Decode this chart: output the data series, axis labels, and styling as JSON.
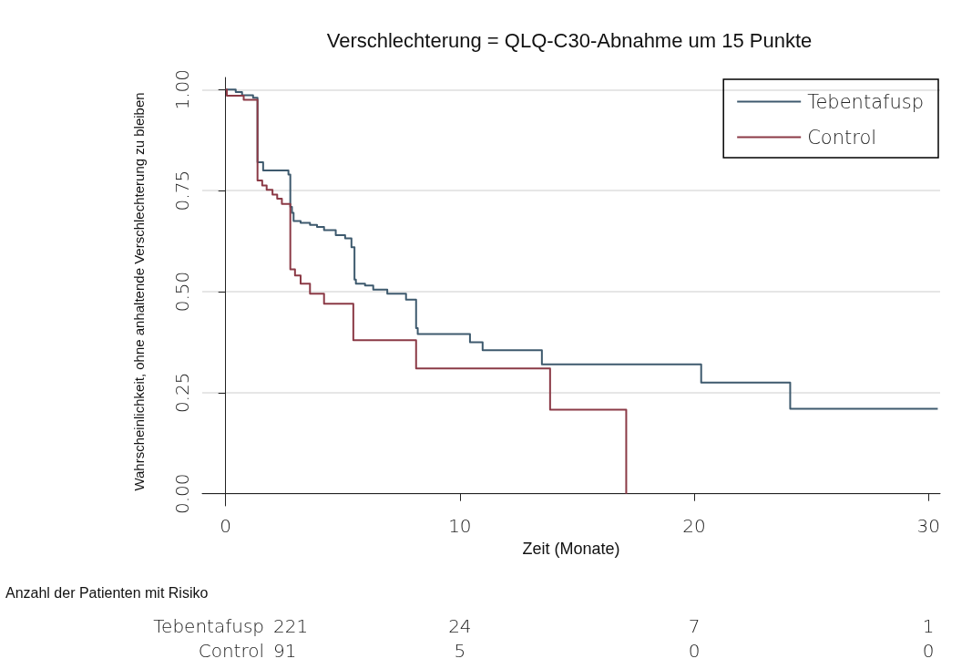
{
  "chart_data": {
    "type": "step",
    "title": "Verschlechterung = QLQ-C30-Abnahme um 15 Punkte",
    "xlabel": "Zeit (Monate)",
    "ylabel": "Wahrscheinlichkeit, ohne anhaltende Verschlechterung zu bleiben",
    "xlim": [
      -1,
      30.5
    ],
    "xticks": [
      0,
      10,
      20,
      30
    ],
    "ylim": [
      -0.03,
      1.03
    ],
    "yticks": [
      {
        "value": 0,
        "label": "0.00"
      },
      {
        "value": 0.25,
        "label": "0.25"
      },
      {
        "value": 0.5,
        "label": "0.50"
      },
      {
        "value": 0.75,
        "label": "0.75"
      },
      {
        "value": 1,
        "label": "1.00"
      }
    ],
    "grid": "y",
    "legend": "top right",
    "marker": "none",
    "line_style": "solid",
    "series": [
      {
        "name": "Tebentafusp",
        "color": "#3e5a6e",
        "x": [
          0,
          0.43,
          0.7,
          1.17,
          1.36,
          1.6,
          2.68,
          2.76,
          2.83,
          2.9,
          3.2,
          3.6,
          3.9,
          4.2,
          4.7,
          5.1,
          5.37,
          5.5,
          5.56,
          5.95,
          6.3,
          6.9,
          7.7,
          8.13,
          8.2,
          10.43,
          10.97,
          13.5,
          20.3,
          24.1,
          30.4
        ],
        "values": [
          1.0,
          0.994,
          0.986,
          0.98,
          0.82,
          0.8,
          0.79,
          0.71,
          0.695,
          0.675,
          0.67,
          0.665,
          0.66,
          0.652,
          0.64,
          0.632,
          0.61,
          0.53,
          0.52,
          0.515,
          0.505,
          0.495,
          0.48,
          0.41,
          0.395,
          0.375,
          0.355,
          0.32,
          0.275,
          0.21,
          0.21
        ]
      },
      {
        "name": "Control",
        "color": "#8b3a46",
        "x": [
          0,
          0.05,
          0.77,
          1.36,
          1.56,
          1.75,
          2.0,
          2.2,
          2.4,
          2.76,
          2.96,
          3.2,
          3.6,
          4.2,
          5.45,
          8.13,
          13.85,
          17.1
        ],
        "values": [
          1.0,
          0.985,
          0.975,
          0.775,
          0.763,
          0.752,
          0.74,
          0.73,
          0.717,
          0.555,
          0.54,
          0.52,
          0.495,
          0.47,
          0.38,
          0.31,
          0.208,
          0.0
        ]
      }
    ],
    "annotations": [
      "Anzahl der Patienten mit Risiko",
      "Tebentafusp",
      "221",
      "24",
      "7",
      "1",
      "Control",
      "91",
      "5",
      "0",
      "0"
    ]
  }
}
